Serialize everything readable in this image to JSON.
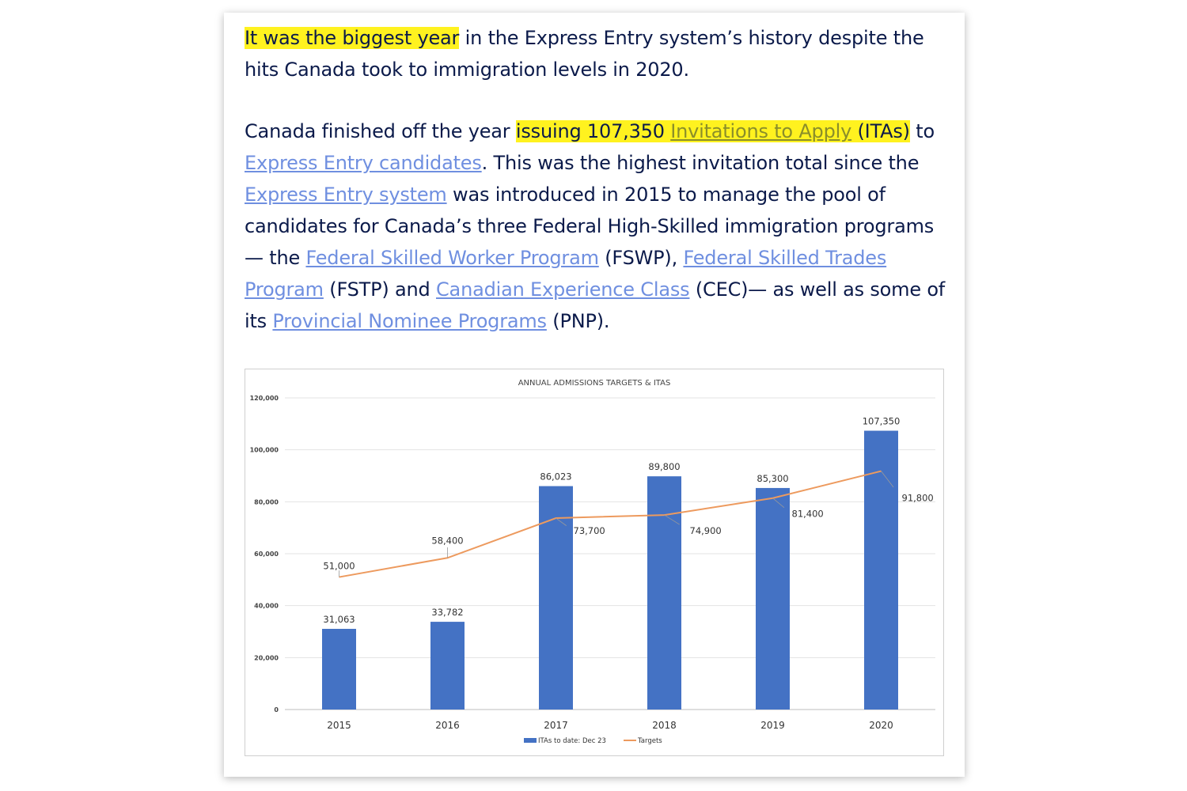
{
  "article": {
    "p1": {
      "highlight": "It was the biggest year",
      "rest": " in the Express Entry system’s history despite the hits Canada took to immigration levels in 2020."
    },
    "p2": {
      "t1": "Canada finished off the year ",
      "h1": "issuing 107,350 ",
      "link_itas": "Invitations to Apply",
      "h2": " (ITAs)",
      "t2": " to ",
      "link_candidates": "Express Entry candidates",
      "t3": ". This was the highest invitation total since the ",
      "link_system": "Express Entry system",
      "t4": " was introduced in 2015 to manage the pool of candidates for Canada’s three Federal High-Skilled immigration programs — the ",
      "link_fswp": "Federal Skilled Worker Program",
      "t5": " (FSWP), ",
      "link_fstp": "Federal Skilled Trades Program",
      "t6": " (FSTP) and ",
      "link_cec": "Canadian Experience Class",
      "t7": " (CEC)— as well as some of its ",
      "link_pnp": "Provincial Nominee Programs",
      "t8": " (PNP)."
    }
  },
  "colors": {
    "bar": "#4472c4",
    "line": "#ed9a5e",
    "text": "#0b1a4a",
    "link": "#6f8fe0",
    "highlight": "#fff21f"
  },
  "chart_data": {
    "type": "bar",
    "title": "ANNUAL ADMISSIONS TARGETS & ITAS",
    "categories": [
      "2015",
      "2016",
      "2017",
      "2018",
      "2019",
      "2020"
    ],
    "series": [
      {
        "name": "ITAs to date: Dec 23",
        "type": "bar",
        "values": [
          31063,
          33782,
          86023,
          89800,
          85300,
          107350
        ],
        "labels": [
          "31,063",
          "33,782",
          "86,023",
          "89,800",
          "85,300",
          "107,350"
        ]
      },
      {
        "name": "Targets",
        "type": "line",
        "values": [
          51000,
          58400,
          73700,
          74900,
          81400,
          91800
        ],
        "labels": [
          "51,000",
          "58,400",
          "73,700",
          "74,900",
          "81,400",
          "91,800"
        ]
      }
    ],
    "ylim": [
      0,
      120000
    ],
    "yticks": [
      0,
      20000,
      40000,
      60000,
      80000,
      100000,
      120000
    ],
    "ytick_labels": [
      "0",
      "20,000",
      "40,000",
      "60,000",
      "80,000",
      "100,000",
      "120,000"
    ],
    "grid": true,
    "legend": "bottom"
  }
}
